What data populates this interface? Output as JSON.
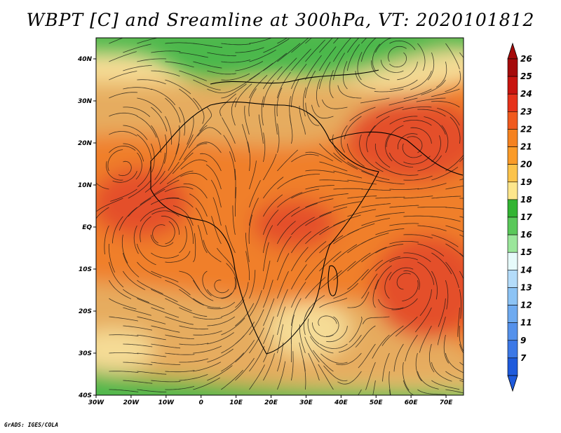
{
  "title": "WBPT [C] and Sreamline at 300hPa, VT: 2020101812",
  "footer": "GrADS: IGES/COLA",
  "map": {
    "lon_range": [
      -30,
      75
    ],
    "lat_range": [
      -40,
      45
    ],
    "x_ticks": [
      {
        "value": -30,
        "label": "30W"
      },
      {
        "value": -20,
        "label": "20W"
      },
      {
        "value": -10,
        "label": "10W"
      },
      {
        "value": 0,
        "label": "0"
      },
      {
        "value": 10,
        "label": "10E"
      },
      {
        "value": 20,
        "label": "20E"
      },
      {
        "value": 30,
        "label": "30E"
      },
      {
        "value": 40,
        "label": "40E"
      },
      {
        "value": 50,
        "label": "50E"
      },
      {
        "value": 60,
        "label": "60E"
      },
      {
        "value": 70,
        "label": "70E"
      }
    ],
    "y_ticks": [
      {
        "value": 40,
        "label": "40N"
      },
      {
        "value": 30,
        "label": "30N"
      },
      {
        "value": 20,
        "label": "20N"
      },
      {
        "value": 10,
        "label": "10N"
      },
      {
        "value": 0,
        "label": "EQ"
      },
      {
        "value": -10,
        "label": "10S"
      },
      {
        "value": -20,
        "label": "20S"
      },
      {
        "value": -30,
        "label": "30S"
      },
      {
        "value": -40,
        "label": "40S"
      }
    ]
  },
  "colorbar": {
    "levels": [
      {
        "label": "26",
        "color": "#a50a0a"
      },
      {
        "label": "25",
        "color": "#c8140f"
      },
      {
        "label": "24",
        "color": "#e6321a"
      },
      {
        "label": "23",
        "color": "#f05a1e"
      },
      {
        "label": "22",
        "color": "#f58220"
      },
      {
        "label": "21",
        "color": "#fa9b28"
      },
      {
        "label": "20",
        "color": "#fcc34a"
      },
      {
        "label": "19",
        "color": "#fde68c"
      },
      {
        "label": "18",
        "color": "#32b432"
      },
      {
        "label": "17",
        "color": "#5ac85a"
      },
      {
        "label": "16",
        "color": "#9be69b"
      },
      {
        "label": "15",
        "color": "#e6fafa"
      },
      {
        "label": "14",
        "color": "#b4dcfa"
      },
      {
        "label": "13",
        "color": "#8cc3f5"
      },
      {
        "label": "12",
        "color": "#6eaaf0"
      },
      {
        "label": "11",
        "color": "#5591eb"
      },
      {
        "label": "9",
        "color": "#3c78e6"
      },
      {
        "label": "7",
        "color": "#1e5adc"
      }
    ]
  },
  "colors": {
    "band_green": "#4cb84c",
    "band_light": "#f5dc96",
    "band_tan": "#e6ac5e",
    "band_orange": "#f07f2a",
    "band_red": "#e4502a"
  }
}
